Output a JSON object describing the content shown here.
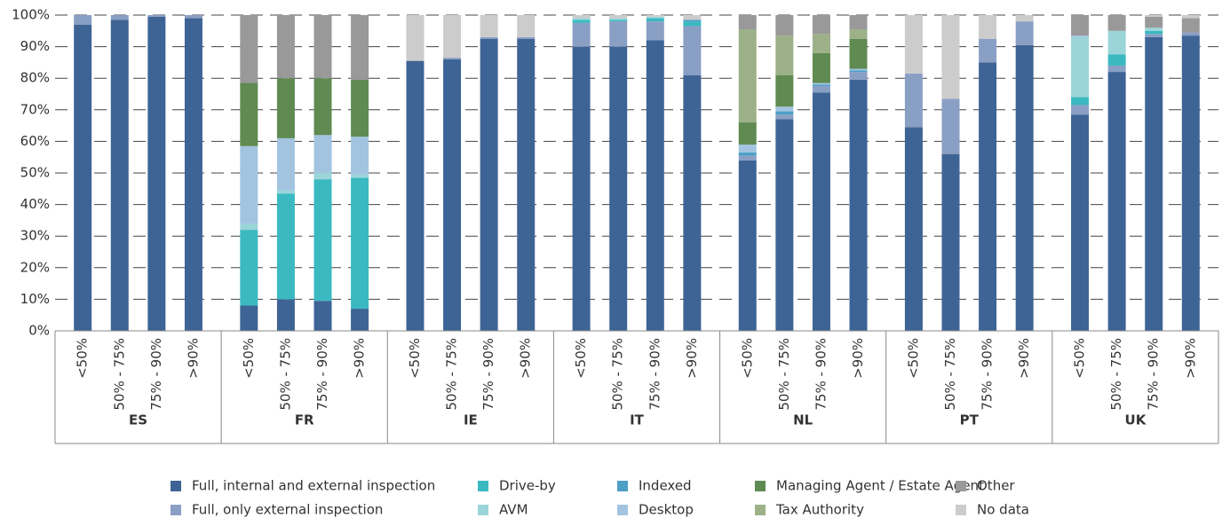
{
  "chart_data": {
    "type": "stacked_bar",
    "groups": [
      "ES",
      "FR",
      "IE",
      "IT",
      "NL",
      "PT",
      "UK"
    ],
    "categories": [
      "<50%",
      "50% - 75%",
      "75% - 90%",
      ">90%",
      "<50%",
      "50% - 75%",
      "75% - 90%",
      ">90%",
      "<50%",
      "50% - 75%",
      "75% - 90%",
      ">90%",
      "<50%",
      "50% - 75%",
      "75% - 90%",
      ">90%",
      "<50%",
      "50% - 75%",
      "75% - 90%",
      ">90%",
      "<50%",
      "50% - 75%",
      "75% - 90%",
      ">90%",
      "<50%",
      "50% - 75%",
      "75% - 90%",
      ">90%"
    ],
    "series": [
      {
        "name": "Full, internal and external inspection",
        "color": "#3e6495",
        "values": [
          97,
          98.5,
          99.5,
          99,
          8,
          10,
          9.5,
          7,
          85.5,
          86,
          92.5,
          92.5,
          90,
          90,
          92,
          81,
          54,
          67,
          75.5,
          79.5,
          64.5,
          56,
          85,
          90.5,
          68.5,
          82,
          93,
          93.5
        ]
      },
      {
        "name": "Full, only external inspection",
        "color": "#8a9fc4",
        "values": [
          3,
          1.5,
          0.5,
          1,
          0,
          0,
          0,
          0,
          0,
          0.5,
          0.5,
          0.5,
          7.5,
          8,
          6,
          15.5,
          1.5,
          1.5,
          2,
          2.5,
          17,
          17.5,
          7.5,
          7.5,
          3,
          2,
          1,
          1
        ]
      },
      {
        "name": "Drive-by",
        "color": "#3bb9c1",
        "values": [
          0,
          0,
          0,
          0,
          24,
          33.5,
          38.5,
          41.5,
          0,
          0,
          0,
          0,
          1,
          0.5,
          1,
          1.5,
          0,
          0,
          0,
          0,
          0,
          0,
          0,
          0,
          2.5,
          3.5,
          1,
          0
        ]
      },
      {
        "name": "AVM",
        "color": "#9bd5d9",
        "values": [
          0,
          0,
          0,
          0,
          2,
          1,
          2,
          1,
          0,
          0,
          0,
          0,
          0.5,
          0.5,
          0.5,
          0,
          0,
          0,
          0,
          0,
          0,
          0,
          0,
          0,
          19,
          7.5,
          1,
          0
        ]
      },
      {
        "name": "Indexed",
        "color": "#4d9fc6",
        "values": [
          0,
          0,
          0,
          0,
          0,
          0,
          0,
          0,
          0,
          0,
          0,
          0,
          0,
          0,
          0,
          0.5,
          1,
          1,
          0.5,
          0.5,
          0,
          0,
          0,
          0,
          0,
          0,
          0,
          0
        ]
      },
      {
        "name": "Desktop",
        "color": "#a2c4e0",
        "values": [
          0,
          0,
          0,
          0,
          24.5,
          16.5,
          12,
          12,
          0,
          0,
          0,
          0,
          0,
          0,
          0,
          0,
          2.5,
          1.5,
          0.5,
          0.5,
          0,
          0,
          0,
          0,
          0.5,
          0,
          0,
          0
        ]
      },
      {
        "name": "Managing Agent / Estate Agent",
        "color": "#5f8a52",
        "values": [
          0,
          0,
          0,
          0,
          20,
          19,
          18,
          18,
          0,
          0,
          0,
          0,
          0,
          0,
          0,
          0,
          7,
          10,
          9.5,
          9.5,
          0,
          0,
          0,
          0,
          0,
          0,
          0,
          0
        ]
      },
      {
        "name": "Tax Authority",
        "color": "#9db189",
        "values": [
          0,
          0,
          0,
          0,
          0,
          0,
          0,
          0,
          0,
          0,
          0,
          0,
          0,
          0,
          0,
          0,
          29.5,
          12.5,
          6,
          3,
          0,
          0,
          0,
          0,
          0,
          0,
          0,
          0
        ]
      },
      {
        "name": "Other",
        "color": "#999999",
        "values": [
          0,
          0,
          0,
          0,
          21.5,
          20,
          20,
          20.5,
          0,
          0,
          0,
          0,
          0,
          0,
          0,
          0,
          4.5,
          6.5,
          6,
          4.5,
          0,
          0,
          0,
          0,
          6.5,
          5,
          3.5,
          4.5
        ]
      },
      {
        "name": "No data",
        "color": "#cccccc",
        "values": [
          0,
          0,
          0,
          0,
          0,
          0,
          0,
          0,
          14.5,
          13.5,
          7,
          7,
          1,
          1,
          0.5,
          1.5,
          0,
          0,
          0,
          0,
          18.5,
          26.5,
          7.5,
          2,
          0,
          0,
          0.5,
          1
        ]
      }
    ],
    "ylim": [
      0,
      100
    ],
    "yticks": [
      {
        "value": 0,
        "label": "0%"
      },
      {
        "value": 10,
        "label": "10%"
      },
      {
        "value": 20,
        "label": "20%"
      },
      {
        "value": 30,
        "label": "30%"
      },
      {
        "value": 40,
        "label": "40%"
      },
      {
        "value": 50,
        "label": "50%"
      },
      {
        "value": 60,
        "label": "60%"
      },
      {
        "value": 70,
        "label": "70%"
      },
      {
        "value": 80,
        "label": "80%"
      },
      {
        "value": 90,
        "label": "90%"
      },
      {
        "value": 100,
        "label": "100%"
      }
    ],
    "grid": true
  }
}
